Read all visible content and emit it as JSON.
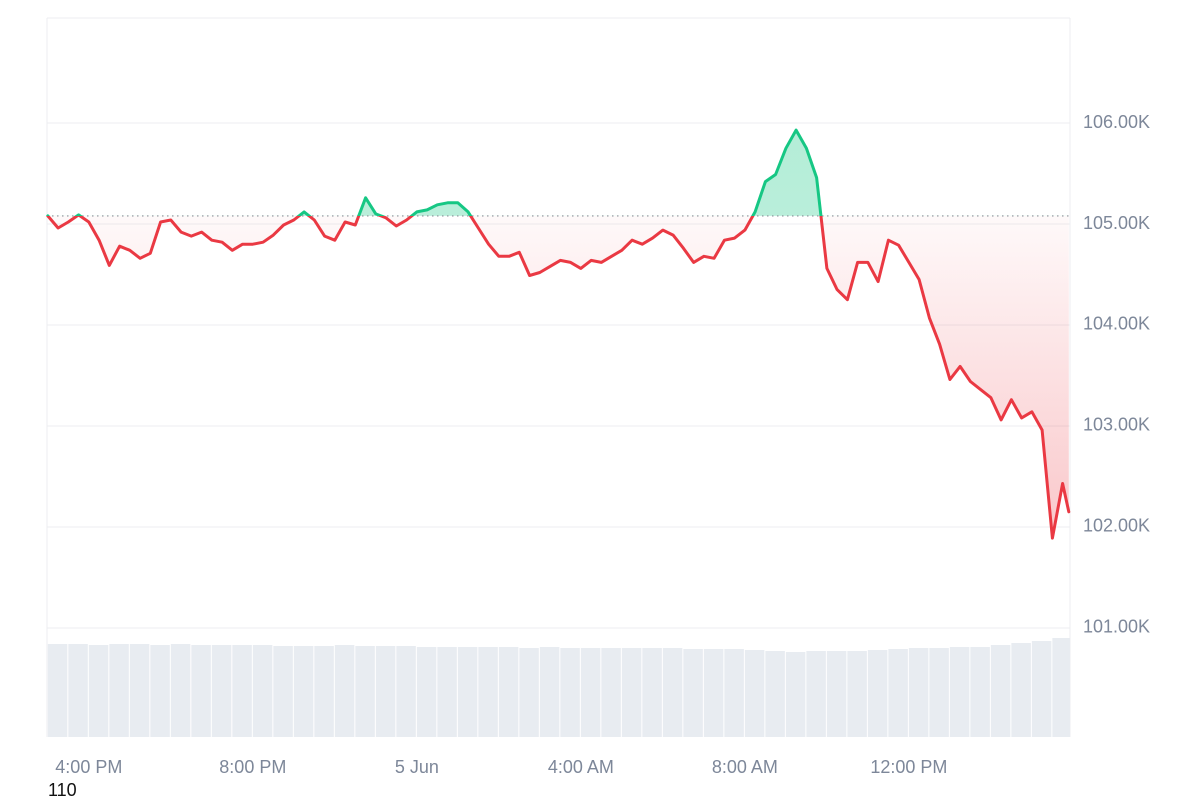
{
  "chart_data": {
    "type": "line",
    "x": [
      15,
      15.25,
      15.5,
      15.75,
      16,
      16.25,
      16.5,
      16.75,
      17,
      17.25,
      17.5,
      17.75,
      18,
      18.25,
      18.5,
      18.75,
      19,
      19.25,
      19.5,
      19.75,
      20,
      20.25,
      20.5,
      20.75,
      21,
      21.25,
      21.5,
      21.75,
      22,
      22.25,
      22.5,
      22.75,
      23,
      23.25,
      23.5,
      23.75,
      24,
      24.25,
      24.5,
      24.75,
      25,
      25.25,
      25.5,
      25.75,
      26,
      26.25,
      26.5,
      26.75,
      27,
      27.25,
      27.5,
      27.75,
      28,
      28.25,
      28.5,
      28.75,
      29,
      29.25,
      29.5,
      29.75,
      30,
      30.25,
      30.5,
      30.75,
      31,
      31.25,
      31.5,
      31.75,
      32,
      32.25,
      32.5,
      32.75,
      33,
      33.25,
      33.5,
      33.75,
      34,
      34.25,
      34.5,
      34.75,
      35,
      35.25,
      35.5,
      35.75,
      36,
      36.25,
      36.5,
      36.75,
      37,
      37.25,
      37.5,
      37.75,
      38,
      38.25,
      38.5,
      38.75,
      39,
      39.25,
      39.5,
      39.75,
      39.9
    ],
    "values": [
      105080,
      104960,
      105020,
      105090,
      105020,
      104840,
      104590,
      104780,
      104740,
      104660,
      104710,
      105020,
      105040,
      104920,
      104880,
      104920,
      104840,
      104820,
      104740,
      104800,
      104800,
      104820,
      104890,
      104990,
      105040,
      105120,
      105040,
      104880,
      104840,
      105020,
      104990,
      105260,
      105100,
      105060,
      104980,
      105040,
      105120,
      105140,
      105190,
      105210,
      105210,
      105120,
      104960,
      104800,
      104680,
      104680,
      104720,
      104490,
      104520,
      104580,
      104640,
      104620,
      104560,
      104640,
      104620,
      104680,
      104740,
      104840,
      104800,
      104860,
      104940,
      104890,
      104760,
      104620,
      104680,
      104660,
      104840,
      104860,
      104940,
      105120,
      105420,
      105490,
      105750,
      105930,
      105750,
      105460,
      104560,
      104350,
      104250,
      104620,
      104620,
      104430,
      104840,
      104790,
      104620,
      104450,
      104070,
      103810,
      103460,
      103590,
      103440,
      103360,
      103280,
      103060,
      103260,
      103080,
      103140,
      102960,
      101890,
      102430,
      102150
    ],
    "baseline": 105080,
    "up_color": "#16c784",
    "down_color": "#ea3943",
    "xlim": [
      14.98,
      39.93
    ],
    "ylim": [
      99920,
      107040
    ],
    "xticks": [
      {
        "value": 16,
        "label": "4:00 PM"
      },
      {
        "value": 20,
        "label": "8:00 PM"
      },
      {
        "value": 24,
        "label": "5 Jun"
      },
      {
        "value": 28,
        "label": "4:00 AM"
      },
      {
        "value": 32,
        "label": "8:00 AM"
      },
      {
        "value": 36,
        "label": "12:00 PM"
      }
    ],
    "yticks": [
      {
        "value": 101000,
        "label": "101.00K"
      },
      {
        "value": 102000,
        "label": "102.00K"
      },
      {
        "value": 103000,
        "label": "103.00K"
      },
      {
        "value": 104000,
        "label": "104.00K"
      },
      {
        "value": 105000,
        "label": "105.00K"
      },
      {
        "value": 106000,
        "label": "106.00K"
      }
    ],
    "grid": true,
    "volume": {
      "axis": "y2",
      "color": "#e8ecf1",
      "x": [
        15,
        15.5,
        16,
        16.5,
        17,
        17.5,
        18,
        18.5,
        19,
        19.5,
        20,
        20.5,
        21,
        21.5,
        22,
        22.5,
        23,
        23.5,
        24,
        24.5,
        25,
        25.5,
        26,
        26.5,
        27,
        27.5,
        28,
        28.5,
        29,
        29.5,
        30,
        30.5,
        31,
        31.5,
        32,
        32.5,
        33,
        33.5,
        34,
        34.5,
        35,
        35.5,
        36,
        36.5,
        37,
        37.5,
        38,
        38.5,
        39,
        39.5
      ],
      "values": [
        93,
        93,
        92,
        93,
        93,
        92,
        93,
        92,
        92,
        92,
        92,
        91,
        91,
        91,
        92,
        91,
        91,
        91,
        90,
        90,
        90,
        90,
        90,
        89,
        90,
        89,
        89,
        89,
        89,
        89,
        89,
        88,
        88,
        88,
        87,
        86,
        85,
        86,
        86,
        86,
        87,
        88,
        89,
        89,
        90,
        90,
        92,
        94,
        96,
        99
      ]
    },
    "y2lim": [
      0,
      100
    ],
    "annotation": "110"
  }
}
